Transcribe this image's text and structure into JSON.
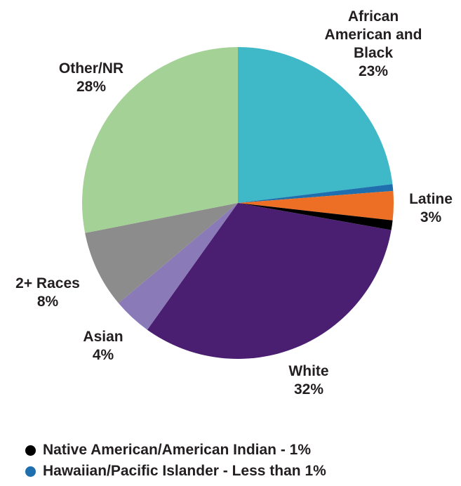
{
  "chart_data": {
    "type": "pie",
    "title": "",
    "slices": [
      {
        "label_lines": [
          "African",
          "American and",
          "Black"
        ],
        "value_label": "23%",
        "value": 23,
        "color": "#3fb8c8"
      },
      {
        "label_lines": [],
        "value_label": "",
        "value": 0.7,
        "color": "#1f6fae"
      },
      {
        "label_lines": [
          "Latine"
        ],
        "value_label": "3%",
        "value": 3,
        "color": "#ec6f25"
      },
      {
        "label_lines": [],
        "value_label": "",
        "value": 1,
        "color": "#000000"
      },
      {
        "label_lines": [
          "White"
        ],
        "value_label": "32%",
        "value": 32,
        "color": "#4a1f72"
      },
      {
        "label_lines": [
          "Asian"
        ],
        "value_label": "4%",
        "value": 4,
        "color": "#8b7ab8"
      },
      {
        "label_lines": [
          "2+ Races"
        ],
        "value_label": "8%",
        "value": 8,
        "color": "#8c8c8c"
      },
      {
        "label_lines": [
          "Other/NR"
        ],
        "value_label": "28%",
        "value": 28,
        "color": "#a4d195"
      }
    ]
  },
  "legend": [
    {
      "text": "Native American/American Indian - 1%",
      "color": "#000000"
    },
    {
      "text": "Hawaiian/Pacific Islander - Less than 1%",
      "color": "#1f6fae"
    }
  ]
}
